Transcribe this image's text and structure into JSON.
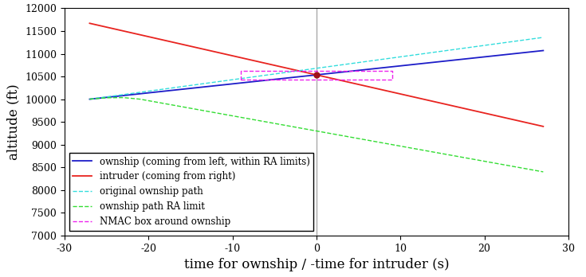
{
  "chart_data": {
    "type": "line",
    "xlabel": "time for ownship / -time for intruder (s)",
    "ylabel": "altitude (ft)",
    "xlim": [
      -30,
      30
    ],
    "xticks": [
      -30,
      -20,
      -10,
      0,
      10,
      20,
      30
    ],
    "ylim": [
      7000,
      12000
    ],
    "yticks": [
      7000,
      7500,
      8000,
      8500,
      9000,
      9500,
      10000,
      10500,
      11000,
      11500,
      12000
    ],
    "grid": false,
    "legend": "lower left",
    "series": [
      {
        "name": "ownship (coming from left, within RA limits)",
        "color": "#1c1cc8",
        "line_style": "solid",
        "x": [
          -27,
          27
        ],
        "values": [
          10000,
          11070
        ]
      },
      {
        "name": "intruder (coming from right)",
        "color": "#e8231f",
        "line_style": "solid",
        "x": [
          -27,
          27
        ],
        "values": [
          11670,
          9400
        ]
      },
      {
        "name": "original ownship path",
        "color": "#33dddd",
        "line_style": "dashed",
        "x": [
          -27,
          27
        ],
        "values": [
          10000,
          11360
        ]
      },
      {
        "name": "ownship path RA limit",
        "color": "#33dd33",
        "line_style": "dashed",
        "x": [
          -27,
          -25,
          -23,
          -21,
          0,
          27
        ],
        "values": [
          10000,
          10030,
          10035,
          10000,
          9300,
          8400
        ]
      },
      {
        "name": "NMAC box around ownship",
        "color": "#ee22ee",
        "line_style": "dashed",
        "x": [
          -9,
          9,
          9,
          -9,
          -9
        ],
        "values": [
          10430,
          10430,
          10630,
          10630,
          10430
        ]
      }
    ],
    "vline": {
      "x": 0,
      "color": "#aaaaaa"
    },
    "point": {
      "x": 0,
      "y": 10540,
      "color": "#a0101a",
      "marker": "o"
    }
  }
}
